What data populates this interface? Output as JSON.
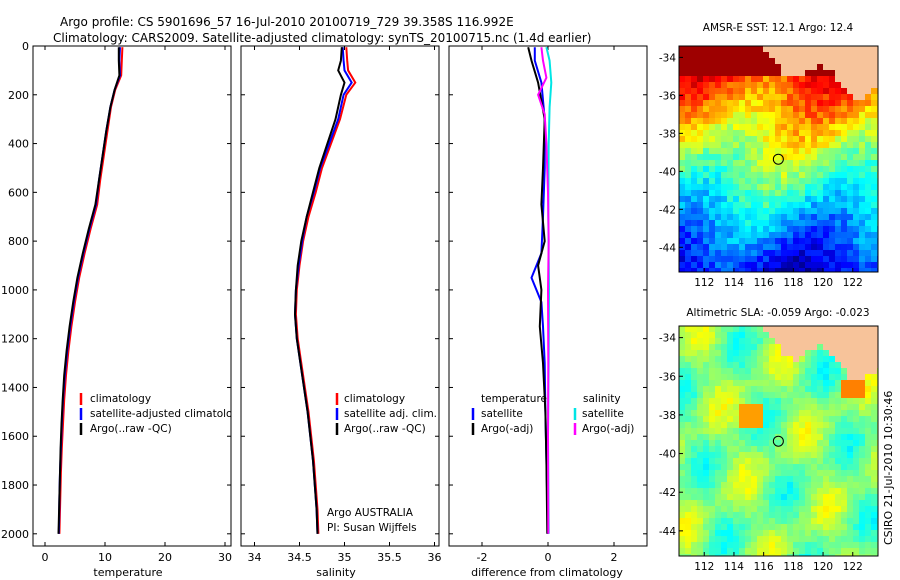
{
  "figure": {
    "title_line1": "Argo profile: CS 5901696_57 16-Jul-2010 20100719_729 39.358S 116.992E",
    "title_line2": "Climatology: CARS2009. Satellite-adjusted climatology: synTS_20100715.nc (1.4d earlier)",
    "side_credit": "CSIRO 21-Jul-2010 10:30:46",
    "owner_line1": "Argo AUSTRALIA",
    "owner_line2": "PI: Susan Wijffels"
  },
  "colors": {
    "climatology": "#ff0000",
    "satellite": "#0000ff",
    "argo": "#000000",
    "sal_satellite": "#00e5e5",
    "sal_argo": "#ff00ff",
    "land": "#f7c39a"
  },
  "chart_data": [
    {
      "id": "temperature",
      "type": "line",
      "xlabel": "temperature",
      "ylabel": "",
      "xlim": [
        -2,
        31
      ],
      "ylim": [
        2050,
        0
      ],
      "x_ticks": [
        "0",
        "10",
        "20",
        "30"
      ],
      "y_ticks": [
        "0",
        "200",
        "400",
        "600",
        "800",
        "1000",
        "1200",
        "1400",
        "1600",
        "1800",
        "2000"
      ],
      "legend": [
        "climatology",
        "satellite-adjusted climatology",
        "Argo(..raw -QC)"
      ],
      "series": [
        {
          "name": "climatology",
          "color": "#ff0000",
          "points": [
            [
              12.9,
              5
            ],
            [
              12.8,
              60
            ],
            [
              12.7,
              120
            ],
            [
              11.7,
              180
            ],
            [
              11.0,
              250
            ],
            [
              10.4,
              350
            ],
            [
              9.8,
              450
            ],
            [
              9.2,
              550
            ],
            [
              8.7,
              650
            ],
            [
              7.6,
              750
            ],
            [
              6.6,
              850
            ],
            [
              5.7,
              950
            ],
            [
              5.0,
              1050
            ],
            [
              4.4,
              1150
            ],
            [
              3.9,
              1250
            ],
            [
              3.5,
              1350
            ],
            [
              3.2,
              1450
            ],
            [
              3.0,
              1550
            ],
            [
              2.8,
              1650
            ],
            [
              2.65,
              1750
            ],
            [
              2.55,
              1850
            ],
            [
              2.45,
              1950
            ],
            [
              2.4,
              2000
            ]
          ]
        },
        {
          "name": "satellite-adjusted climatology",
          "color": "#0000ff",
          "points": [
            [
              12.5,
              5
            ],
            [
              12.4,
              60
            ],
            [
              12.5,
              120
            ],
            [
              11.6,
              180
            ],
            [
              10.9,
              250
            ],
            [
              10.2,
              350
            ],
            [
              9.6,
              450
            ],
            [
              9.0,
              550
            ],
            [
              8.5,
              650
            ],
            [
              7.4,
              750
            ],
            [
              6.4,
              850
            ],
            [
              5.5,
              950
            ],
            [
              4.8,
              1050
            ],
            [
              4.2,
              1150
            ],
            [
              3.7,
              1250
            ],
            [
              3.3,
              1350
            ],
            [
              3.0,
              1450
            ],
            [
              2.8,
              1550
            ],
            [
              2.65,
              1650
            ],
            [
              2.5,
              1750
            ],
            [
              2.4,
              1850
            ],
            [
              2.35,
              1950
            ],
            [
              2.3,
              2000
            ]
          ]
        },
        {
          "name": "Argo(..raw -QC)",
          "color": "#000000",
          "points": [
            [
              12.3,
              5
            ],
            [
              12.3,
              60
            ],
            [
              12.4,
              120
            ],
            [
              11.6,
              180
            ],
            [
              10.9,
              250
            ],
            [
              10.2,
              350
            ],
            [
              9.6,
              450
            ],
            [
              9.0,
              550
            ],
            [
              8.4,
              650
            ],
            [
              7.3,
              750
            ],
            [
              6.3,
              850
            ],
            [
              5.4,
              950
            ],
            [
              4.7,
              1050
            ],
            [
              4.1,
              1150
            ],
            [
              3.6,
              1250
            ],
            [
              3.2,
              1350
            ],
            [
              2.95,
              1450
            ],
            [
              2.75,
              1550
            ],
            [
              2.6,
              1650
            ],
            [
              2.5,
              1750
            ],
            [
              2.4,
              1850
            ],
            [
              2.3,
              1950
            ],
            [
              2.25,
              2000
            ]
          ]
        }
      ]
    },
    {
      "id": "salinity",
      "type": "line",
      "xlabel": "salinity",
      "xlim": [
        33.85,
        36.05
      ],
      "ylim": [
        2050,
        0
      ],
      "x_ticks": [
        "34",
        "34.5",
        "35",
        "35.5",
        "36"
      ],
      "legend": [
        "climatology",
        "satellite adj. clim.",
        "Argo(..raw -QC)"
      ],
      "series": [
        {
          "name": "climatology",
          "color": "#ff0000",
          "points": [
            [
              35.02,
              5
            ],
            [
              35.03,
              60
            ],
            [
              35.04,
              100
            ],
            [
              35.12,
              150
            ],
            [
              35.02,
              200
            ],
            [
              34.95,
              300
            ],
            [
              34.85,
              400
            ],
            [
              34.75,
              500
            ],
            [
              34.68,
              600
            ],
            [
              34.6,
              700
            ],
            [
              34.54,
              800
            ],
            [
              34.5,
              900
            ],
            [
              34.47,
              1000
            ],
            [
              34.46,
              1100
            ],
            [
              34.48,
              1200
            ],
            [
              34.52,
              1300
            ],
            [
              34.56,
              1400
            ],
            [
              34.6,
              1500
            ],
            [
              34.63,
              1600
            ],
            [
              34.66,
              1700
            ],
            [
              34.68,
              1800
            ],
            [
              34.7,
              1900
            ],
            [
              34.71,
              2000
            ]
          ]
        },
        {
          "name": "satellite adj. clim.",
          "color": "#0000ff",
          "points": [
            [
              34.98,
              5
            ],
            [
              34.99,
              60
            ],
            [
              35.0,
              100
            ],
            [
              35.08,
              150
            ],
            [
              34.99,
              200
            ],
            [
              34.93,
              300
            ],
            [
              34.83,
              400
            ],
            [
              34.73,
              500
            ],
            [
              34.66,
              600
            ],
            [
              34.58,
              700
            ],
            [
              34.53,
              800
            ],
            [
              34.49,
              900
            ],
            [
              34.46,
              1000
            ],
            [
              34.45,
              1100
            ],
            [
              34.47,
              1200
            ],
            [
              34.51,
              1300
            ],
            [
              34.55,
              1400
            ],
            [
              34.59,
              1500
            ],
            [
              34.62,
              1600
            ],
            [
              34.65,
              1700
            ],
            [
              34.67,
              1800
            ],
            [
              34.69,
              1900
            ],
            [
              34.7,
              2000
            ]
          ]
        },
        {
          "name": "Argo(..raw -QC)",
          "color": "#000000",
          "points": [
            [
              34.97,
              5
            ],
            [
              34.96,
              60
            ],
            [
              34.93,
              100
            ],
            [
              35.0,
              150
            ],
            [
              34.96,
              200
            ],
            [
              34.9,
              300
            ],
            [
              34.81,
              400
            ],
            [
              34.72,
              500
            ],
            [
              34.65,
              600
            ],
            [
              34.58,
              700
            ],
            [
              34.52,
              800
            ],
            [
              34.48,
              900
            ],
            [
              34.46,
              1000
            ],
            [
              34.45,
              1100
            ],
            [
              34.47,
              1200
            ],
            [
              34.51,
              1300
            ],
            [
              34.55,
              1400
            ],
            [
              34.59,
              1500
            ],
            [
              34.62,
              1600
            ],
            [
              34.65,
              1700
            ],
            [
              34.67,
              1800
            ],
            [
              34.69,
              1900
            ],
            [
              34.7,
              2000
            ]
          ]
        }
      ]
    },
    {
      "id": "difference",
      "type": "line",
      "xlabel": "difference from climatology",
      "xlim": [
        -3,
        3
      ],
      "ylim": [
        2050,
        0
      ],
      "x_ticks": [
        "-2",
        "0",
        "2"
      ],
      "legend_left_title": "temperature",
      "legend_right_title": "salinity",
      "legend_left": [
        "satellite",
        "Argo(-adj)"
      ],
      "legend_right": [
        "satellite",
        "Argo(-adj)"
      ],
      "series": [
        {
          "name": "temperature satellite",
          "color": "#0000ff",
          "points": [
            [
              -0.4,
              5
            ],
            [
              -0.4,
              60
            ],
            [
              -0.2,
              150
            ],
            [
              -0.1,
              300
            ],
            [
              -0.1,
              500
            ],
            [
              -0.15,
              700
            ],
            [
              -0.2,
              850
            ],
            [
              -0.5,
              950
            ],
            [
              -0.2,
              1050
            ],
            [
              -0.15,
              1150
            ],
            [
              -0.1,
              1300
            ],
            [
              -0.08,
              1500
            ],
            [
              -0.05,
              1700
            ],
            [
              0,
              2000
            ]
          ]
        },
        {
          "name": "temperature Argo(-adj)",
          "color": "#000000",
          "points": [
            [
              -0.6,
              5
            ],
            [
              -0.5,
              60
            ],
            [
              -0.3,
              150
            ],
            [
              -0.1,
              300
            ],
            [
              -0.15,
              500
            ],
            [
              -0.2,
              650
            ],
            [
              -0.1,
              800
            ],
            [
              -0.3,
              900
            ],
            [
              -0.2,
              1000
            ],
            [
              -0.25,
              1150
            ],
            [
              -0.15,
              1300
            ],
            [
              -0.08,
              1500
            ],
            [
              -0.05,
              1700
            ],
            [
              -0.02,
              2000
            ]
          ]
        },
        {
          "name": "salinity satellite",
          "color": "#00e5e5",
          "points": [
            [
              -0.05,
              5
            ],
            [
              0.05,
              60
            ],
            [
              0.1,
              150
            ],
            [
              0.05,
              250
            ],
            [
              0.02,
              400
            ],
            [
              0.01,
              700
            ],
            [
              0.03,
              1000
            ],
            [
              0.02,
              1300
            ],
            [
              0.0,
              1600
            ],
            [
              0.02,
              2000
            ]
          ]
        },
        {
          "name": "salinity Argo(-adj)",
          "color": "#ff00ff",
          "points": [
            [
              -0.2,
              5
            ],
            [
              -0.15,
              60
            ],
            [
              -0.05,
              130
            ],
            [
              -0.3,
              200
            ],
            [
              -0.1,
              280
            ],
            [
              -0.05,
              400
            ],
            [
              0.0,
              600
            ],
            [
              0.02,
              800
            ],
            [
              0.0,
              1000
            ],
            [
              0.01,
              1300
            ],
            [
              0.0,
              1600
            ],
            [
              0.01,
              2000
            ]
          ]
        }
      ]
    },
    {
      "id": "sst_map",
      "type": "heatmap",
      "title": "AMSR-E SST: 12.1  Argo: 12.4",
      "x_ticks": [
        "112",
        "114",
        "116",
        "118",
        "120",
        "122"
      ],
      "y_ticks": [
        "-34",
        "-36",
        "-38",
        "-40",
        "-42",
        "-44"
      ],
      "xlim": [
        110.3,
        123.7
      ],
      "ylim": [
        -45.3,
        -33.4
      ],
      "float_position": [
        116.99,
        -39.36
      ]
    },
    {
      "id": "sla_map",
      "type": "heatmap",
      "title": "Altimetric SLA: -0.059  Argo: -0.023",
      "x_ticks": [
        "112",
        "114",
        "116",
        "118",
        "120",
        "122"
      ],
      "y_ticks": [
        "-34",
        "-36",
        "-38",
        "-40",
        "-42",
        "-44"
      ],
      "xlim": [
        110.3,
        123.7
      ],
      "ylim": [
        -45.3,
        -33.4
      ],
      "float_position": [
        116.99,
        -39.36
      ]
    }
  ]
}
